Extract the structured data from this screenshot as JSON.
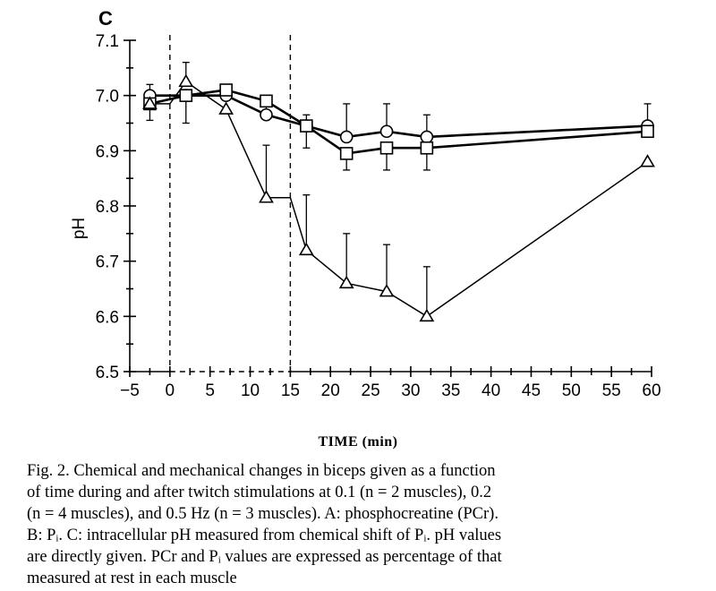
{
  "panel_label": "C",
  "chart_data": {
    "type": "scatter",
    "title": "",
    "xlabel": "TIME (min)",
    "ylabel": "pH",
    "xlim": [
      -5,
      60
    ],
    "ylim": [
      6.5,
      7.1
    ],
    "x_ticks": [
      -5,
      0,
      5,
      10,
      15,
      20,
      25,
      30,
      35,
      40,
      45,
      50,
      55,
      60
    ],
    "x_tick_labels": [
      "−5",
      "0",
      "5",
      "10",
      "15",
      "20",
      "25",
      "30",
      "35",
      "40",
      "45",
      "50",
      "55",
      "60"
    ],
    "y_ticks": [
      6.5,
      6.6,
      6.7,
      6.8,
      6.9,
      7.0,
      7.1
    ],
    "y_tick_labels": [
      "6.5",
      "6.6",
      "6.7",
      "6.8",
      "6.9",
      "7.0",
      "7.1"
    ],
    "stimulation_markers_x": [
      0,
      15
    ],
    "series": [
      {
        "marker": "circle",
        "x": [
          -2.5,
          2.0,
          7.0,
          12.0,
          17.0,
          22.0,
          27.0,
          32.0,
          59.5
        ],
        "y": [
          7.0,
          7.0,
          7.0,
          6.965,
          6.945,
          6.925,
          6.935,
          6.925,
          6.945
        ],
        "err_up": [
          0.02,
          0.01,
          0.01,
          0.02,
          0.02,
          0.06,
          0.05,
          0.04,
          0.04
        ]
      },
      {
        "marker": "square",
        "x": [
          -2.5,
          2.0,
          7.0,
          12.0,
          17.0,
          22.0,
          27.0,
          32.0,
          59.5
        ],
        "y": [
          6.985,
          7.0,
          7.01,
          6.99,
          6.945,
          6.895,
          6.905,
          6.905,
          6.935
        ],
        "err_down": [
          0.03,
          0.05,
          0.0,
          0.0,
          0.04,
          0.03,
          0.04,
          0.04,
          0.0
        ]
      },
      {
        "marker": "triangle",
        "x": [
          -2.5,
          2.0,
          7.0,
          12.0,
          17.0,
          22.0,
          27.0,
          32.0,
          59.5
        ],
        "y": [
          6.985,
          7.025,
          6.975,
          6.815,
          6.72,
          6.66,
          6.645,
          6.6,
          6.88
        ],
        "err_up": [
          0.0,
          0.035,
          0.0,
          0.095,
          0.1,
          0.09,
          0.085,
          0.09,
          0.0
        ],
        "path_points": [
          [
            -2.5,
            6.985
          ],
          [
            0,
            6.985
          ],
          [
            2.0,
            7.025
          ],
          [
            7.0,
            6.975
          ],
          [
            12.0,
            6.815
          ],
          [
            15.0,
            6.815
          ],
          [
            17.0,
            6.72
          ],
          [
            22.0,
            6.66
          ],
          [
            27.0,
            6.645
          ],
          [
            32.0,
            6.6
          ],
          [
            59.5,
            6.88
          ]
        ]
      }
    ]
  },
  "caption": {
    "lines": [
      "Fig. 2.  Chemical and mechanical changes in biceps given as a function",
      "of time during and after twitch stimulations at 0.1 (n = 2 muscles), 0.2",
      "(n = 4 muscles), and 0.5 Hz (n = 3 muscles). A: phosphocreatine (PCr).",
      "B: Pᵢ. C: intracellular pH measured from chemical shift of Pᵢ. pH values",
      "are directly given. PCr and Pᵢ values are expressed as percentage of that",
      "measured at rest in each muscle"
    ]
  }
}
